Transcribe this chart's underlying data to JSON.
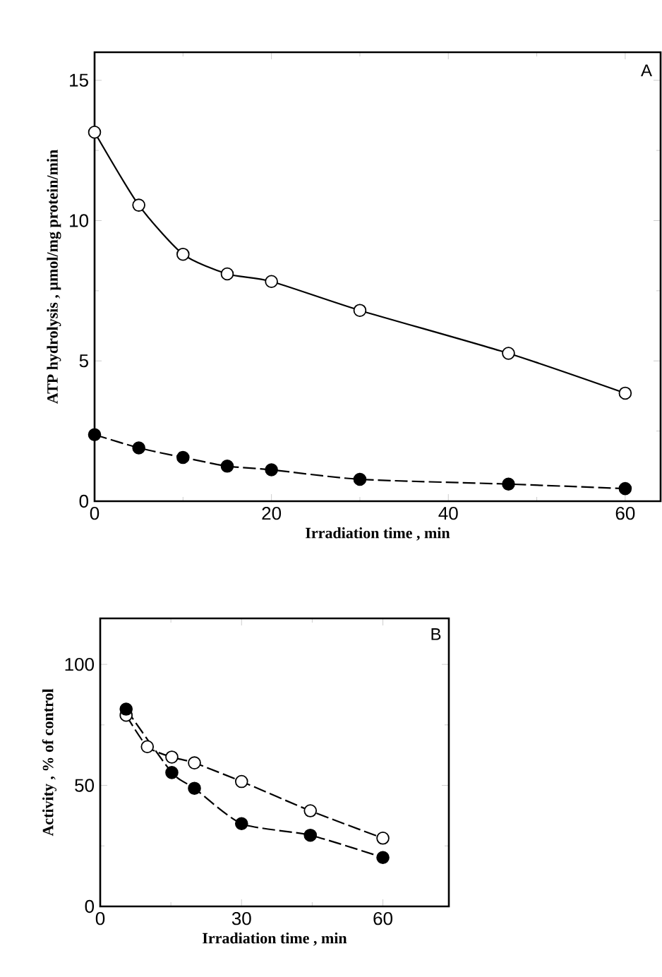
{
  "chart_data": [
    {
      "type": "line",
      "title": "A",
      "xlabel": "Irradiation time   , min",
      "ylabel": "ATP hydrolysis  ,  µmol/mg protein/min",
      "xlim": [
        0,
        64
      ],
      "ylim": [
        0,
        16
      ],
      "xticks": [
        0,
        20,
        40,
        60
      ],
      "yticks": [
        0,
        5,
        10,
        15
      ],
      "marker": "circle",
      "x": [
        0,
        5,
        10,
        15,
        20,
        30,
        46.8,
        60
      ],
      "series": [
        {
          "color": "#ffffff",
          "line_style": "solid",
          "values": [
            13.15,
            10.55,
            8.8,
            8.1,
            7.83,
            6.8,
            5.27,
            3.85
          ]
        },
        {
          "color": "#000000",
          "line_style": "dashed",
          "values": [
            2.37,
            1.9,
            1.56,
            1.25,
            1.12,
            0.78,
            0.61,
            0.45
          ]
        }
      ]
    },
    {
      "type": "line",
      "title": "B",
      "xlabel": "Irradiation time , min",
      "ylabel": "Activity , % of control",
      "xlim": [
        0,
        74
      ],
      "ylim": [
        0,
        119
      ],
      "xticks": [
        0,
        30,
        60
      ],
      "yticks": [
        0,
        50,
        100
      ],
      "marker": "circle",
      "line_style": "dashed",
      "x": [
        5.5,
        10,
        15.2,
        20,
        30,
        44.6,
        60
      ],
      "series": [
        {
          "color": "#ffffff",
          "values": [
            79,
            66,
            61.7,
            59.3,
            51.6,
            39.5,
            28.2
          ]
        },
        {
          "color": "#000000",
          "values": [
            81.5,
            null,
            55.3,
            48.8,
            34.2,
            29.4,
            20.2
          ]
        }
      ]
    }
  ]
}
